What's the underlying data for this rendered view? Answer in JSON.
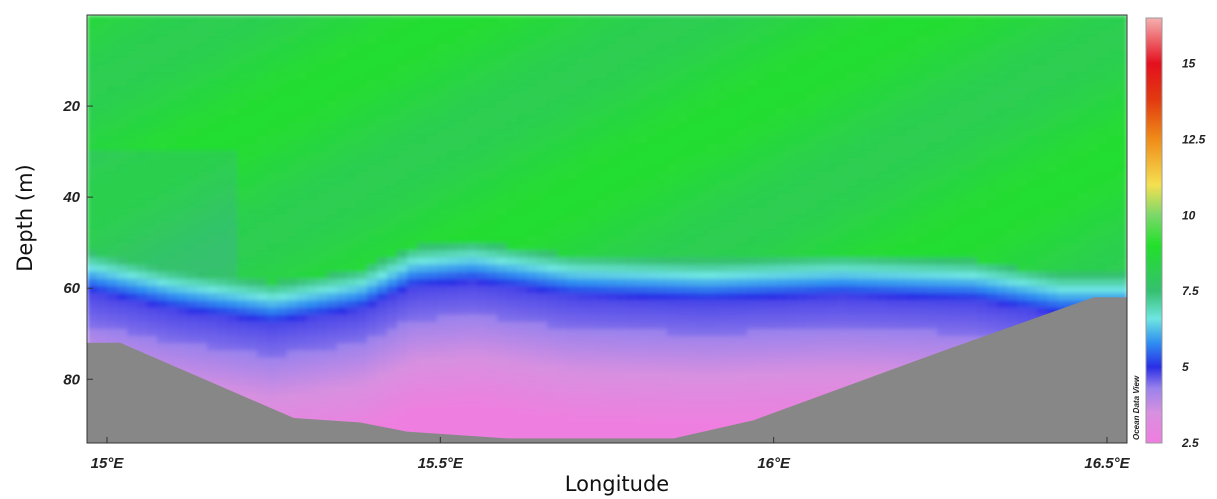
{
  "chart_data": {
    "type": "heatmap",
    "subtype": "ocean section contour plot",
    "xlabel": "Longitude",
    "ylabel": "Depth (m)",
    "xlim": [
      14.97,
      16.53
    ],
    "ylim": [
      94,
      0
    ],
    "y_inverted": true,
    "grid": false,
    "x_ticks": [
      {
        "value": 15.0,
        "label": "15°E"
      },
      {
        "value": 15.5,
        "label": "15.5°E"
      },
      {
        "value": 16.0,
        "label": "16°E"
      },
      {
        "value": 16.5,
        "label": "16.5°E"
      }
    ],
    "y_ticks": [
      {
        "value": 20,
        "label": "20"
      },
      {
        "value": 40,
        "label": "40"
      },
      {
        "value": 60,
        "label": "60"
      },
      {
        "value": 80,
        "label": "80"
      }
    ],
    "colorbar": {
      "range": [
        2.5,
        16.5
      ],
      "ticks": [
        {
          "value": 2.5,
          "label": "2.5"
        },
        {
          "value": 5,
          "label": "5"
        },
        {
          "value": 7.5,
          "label": "7.5"
        },
        {
          "value": 10,
          "label": "10"
        },
        {
          "value": 12.5,
          "label": "12.5"
        },
        {
          "value": 15,
          "label": "15"
        }
      ],
      "stops": [
        {
          "value": 2.5,
          "color": "#f07de0"
        },
        {
          "value": 3.5,
          "color": "#d890e0"
        },
        {
          "value": 4.3,
          "color": "#9a82ec"
        },
        {
          "value": 5.0,
          "color": "#2a2ee6"
        },
        {
          "value": 5.8,
          "color": "#2f8ef2"
        },
        {
          "value": 6.6,
          "color": "#6ee6e0"
        },
        {
          "value": 7.5,
          "color": "#35c070"
        },
        {
          "value": 9.0,
          "color": "#22e02a"
        },
        {
          "value": 10.0,
          "color": "#7ad86a"
        },
        {
          "value": 11.0,
          "color": "#f4e050"
        },
        {
          "value": 12.5,
          "color": "#f08c18"
        },
        {
          "value": 13.8,
          "color": "#e23a10"
        },
        {
          "value": 15.0,
          "color": "#e4101e"
        },
        {
          "value": 16.5,
          "color": "#f6b0b0"
        }
      ]
    },
    "field": {
      "description": "green upper water column, cold blue/purple layer below ~60 m",
      "surface_value": 8.5,
      "thermocline_depth_profile": [
        {
          "lon": 14.97,
          "depth": 56
        },
        {
          "lon": 15.1,
          "depth": 60
        },
        {
          "lon": 15.25,
          "depth": 63
        },
        {
          "lon": 15.38,
          "depth": 60
        },
        {
          "lon": 15.46,
          "depth": 55
        },
        {
          "lon": 15.55,
          "depth": 54
        },
        {
          "lon": 15.7,
          "depth": 57
        },
        {
          "lon": 15.9,
          "depth": 58
        },
        {
          "lon": 16.1,
          "depth": 57
        },
        {
          "lon": 16.3,
          "depth": 58
        },
        {
          "lon": 16.43,
          "depth": 61
        }
      ]
    },
    "bathymetry": [
      {
        "lon": 14.97,
        "depth": 72
      },
      {
        "lon": 15.02,
        "depth": 72
      },
      {
        "lon": 15.28,
        "depth": 88.5
      },
      {
        "lon": 15.38,
        "depth": 89.5
      },
      {
        "lon": 15.45,
        "depth": 91.5
      },
      {
        "lon": 15.6,
        "depth": 93
      },
      {
        "lon": 15.85,
        "depth": 93
      },
      {
        "lon": 15.97,
        "depth": 89
      },
      {
        "lon": 16.25,
        "depth": 74
      },
      {
        "lon": 16.48,
        "depth": 62
      },
      {
        "lon": 16.53,
        "depth": 62
      }
    ],
    "credit": "Ocean Data View"
  },
  "colors": {
    "seafloor": "#878787",
    "frame": "#333333"
  }
}
